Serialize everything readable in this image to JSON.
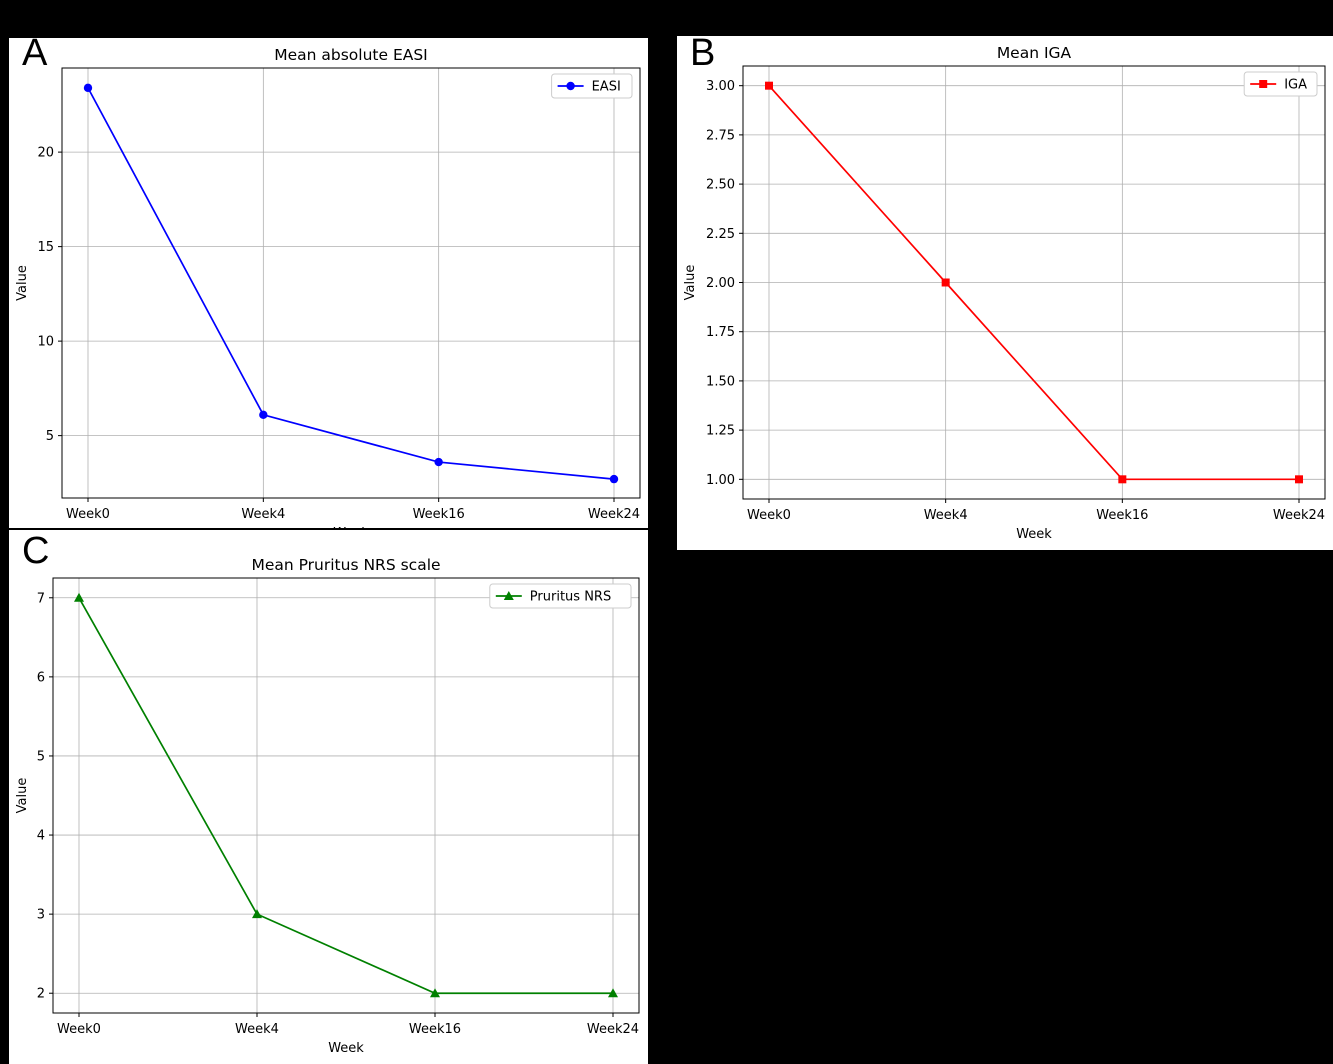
{
  "panel_letters": {
    "a": "A",
    "b": "B",
    "c": "C"
  },
  "chart_data": [
    {
      "type": "line",
      "panel": "A",
      "title": "Mean absolute EASI",
      "xlabel": "Week",
      "ylabel": "Value",
      "categories": [
        "Week0",
        "Week4",
        "Week16",
        "Week24"
      ],
      "series": [
        {
          "name": "EASI",
          "values": [
            23.4,
            6.1,
            3.6,
            2.7
          ],
          "color": "#0000ff",
          "marker": "circle"
        }
      ],
      "ylim": [
        1.7,
        24.45
      ],
      "yticks": [
        5,
        10,
        15,
        20
      ],
      "ytick_labels": [
        "5",
        "10",
        "15",
        "20"
      ],
      "grid": true,
      "legend": "top-right"
    },
    {
      "type": "line",
      "panel": "B",
      "title": "Mean IGA",
      "xlabel": "Week",
      "ylabel": "Value",
      "categories": [
        "Week0",
        "Week4",
        "Week16",
        "Week24"
      ],
      "series": [
        {
          "name": "IGA",
          "values": [
            3.0,
            2.0,
            1.0,
            1.0
          ],
          "color": "#ff0000",
          "marker": "square"
        }
      ],
      "ylim": [
        0.9,
        3.1
      ],
      "yticks": [
        1.0,
        1.25,
        1.5,
        1.75,
        2.0,
        2.25,
        2.5,
        2.75,
        3.0
      ],
      "ytick_labels": [
        "1.00",
        "1.25",
        "1.50",
        "1.75",
        "2.00",
        "2.25",
        "2.50",
        "2.75",
        "3.00"
      ],
      "grid": true,
      "legend": "top-right"
    },
    {
      "type": "line",
      "panel": "C",
      "title": "Mean Pruritus NRS scale",
      "xlabel": "Week",
      "ylabel": "Value",
      "categories": [
        "Week0",
        "Week4",
        "Week16",
        "Week24"
      ],
      "series": [
        {
          "name": "Pruritus NRS",
          "values": [
            7,
            3,
            2,
            2
          ],
          "color": "#008000",
          "marker": "triangle"
        }
      ],
      "ylim": [
        1.75,
        7.25
      ],
      "yticks": [
        2,
        3,
        4,
        5,
        6,
        7
      ],
      "ytick_labels": [
        "2",
        "3",
        "4",
        "5",
        "6",
        "7"
      ],
      "grid": true,
      "legend": "top-right"
    }
  ]
}
